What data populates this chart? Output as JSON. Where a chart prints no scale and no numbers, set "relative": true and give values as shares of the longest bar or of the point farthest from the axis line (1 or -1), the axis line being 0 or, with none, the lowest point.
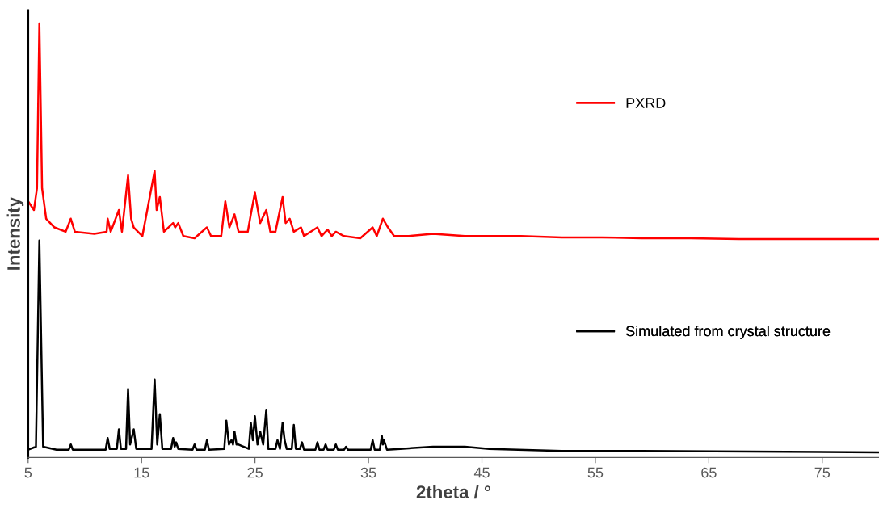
{
  "chart_data": {
    "type": "line",
    "relative": true,
    "xlabel": "2theta / °",
    "ylabel": "Intensity",
    "xlim": [
      5,
      80
    ],
    "xticks": [
      5,
      15,
      25,
      35,
      45,
      55,
      65,
      75
    ],
    "grid": false,
    "legend": "right",
    "marker": "none",
    "line_style": "solid",
    "series": [
      {
        "name": "PXRD",
        "color": "#ff0000",
        "x": [
          5,
          5.51,
          5.78,
          5.99,
          6.23,
          6.59,
          7.32,
          8.31,
          8.76,
          9.12,
          10.83,
          11.92,
          12.01,
          12.28,
          13.0,
          13.27,
          13.81,
          14.08,
          14.31,
          15.07,
          16.15,
          16.33,
          16.61,
          16.97,
          17.78,
          17.96,
          18.23,
          18.68,
          19.67,
          20.76,
          21.12,
          22.02,
          22.38,
          22.74,
          23.19,
          23.55,
          24.36,
          24.63,
          24.99,
          25.45,
          25.99,
          26.35,
          26.8,
          27.43,
          27.7,
          28.06,
          28.42,
          29.05,
          29.32,
          30.5,
          30.86,
          31.4,
          31.76,
          32.12,
          32.84,
          34.28,
          35.37,
          35.73,
          36.27,
          36.72,
          37.26,
          38.52,
          40.69,
          43.49,
          45.65,
          48.45,
          52.05,
          55.57,
          59.09,
          63.42,
          67.66,
          73.34,
          80
        ],
        "values": [
          0.59,
          0.57,
          0.62,
          1.0,
          0.62,
          0.55,
          0.53,
          0.52,
          0.55,
          0.52,
          0.515,
          0.52,
          0.55,
          0.52,
          0.57,
          0.52,
          0.65,
          0.55,
          0.53,
          0.51,
          0.66,
          0.57,
          0.6,
          0.52,
          0.54,
          0.53,
          0.54,
          0.51,
          0.505,
          0.53,
          0.51,
          0.51,
          0.59,
          0.53,
          0.56,
          0.52,
          0.52,
          0.56,
          0.61,
          0.54,
          0.57,
          0.52,
          0.52,
          0.6,
          0.54,
          0.55,
          0.52,
          0.53,
          0.51,
          0.53,
          0.51,
          0.525,
          0.51,
          0.52,
          0.51,
          0.505,
          0.53,
          0.51,
          0.55,
          0.53,
          0.51,
          0.51,
          0.515,
          0.51,
          0.51,
          0.51,
          0.507,
          0.507,
          0.505,
          0.505,
          0.503,
          0.503,
          0.503
        ]
      },
      {
        "name": "Simulated from crystal structure",
        "color": "#000000",
        "x": [
          5,
          5.69,
          5.99,
          6.32,
          7.5,
          8.58,
          8.76,
          8.94,
          11.83,
          12.01,
          12.19,
          12.82,
          13.0,
          13.18,
          13.63,
          13.81,
          13.99,
          14.31,
          14.53,
          15.88,
          16.15,
          16.38,
          16.61,
          16.83,
          17.6,
          17.78,
          17.92,
          18.05,
          18.23,
          19.49,
          19.67,
          19.85,
          20.58,
          20.76,
          20.94,
          22.29,
          22.47,
          22.7,
          22.92,
          23.06,
          23.19,
          23.37,
          23.55,
          24.45,
          24.63,
          24.81,
          24.99,
          25.22,
          25.45,
          25.72,
          25.99,
          26.17,
          26.8,
          26.98,
          27.2,
          27.43,
          27.61,
          27.79,
          28.24,
          28.42,
          28.6,
          28.96,
          29.14,
          29.32,
          30.32,
          30.5,
          30.68,
          31.04,
          31.22,
          31.4,
          31.94,
          32.12,
          32.3,
          32.84,
          33.02,
          33.2,
          35.19,
          35.37,
          35.55,
          36.0,
          36.18,
          36.27,
          36.36,
          36.63,
          37.8,
          40.69,
          43.49,
          45.65,
          52.05,
          59.09,
          80
        ],
        "values": [
          0.018,
          0.025,
          0.5,
          0.025,
          0.018,
          0.018,
          0.03,
          0.018,
          0.018,
          0.045,
          0.02,
          0.02,
          0.065,
          0.02,
          0.02,
          0.158,
          0.03,
          0.065,
          0.02,
          0.02,
          0.18,
          0.03,
          0.1,
          0.02,
          0.02,
          0.045,
          0.025,
          0.035,
          0.02,
          0.018,
          0.03,
          0.018,
          0.018,
          0.04,
          0.018,
          0.02,
          0.085,
          0.03,
          0.04,
          0.03,
          0.06,
          0.03,
          0.03,
          0.02,
          0.08,
          0.04,
          0.095,
          0.03,
          0.06,
          0.03,
          0.11,
          0.02,
          0.02,
          0.04,
          0.02,
          0.08,
          0.04,
          0.02,
          0.02,
          0.075,
          0.02,
          0.02,
          0.035,
          0.018,
          0.018,
          0.035,
          0.018,
          0.018,
          0.03,
          0.018,
          0.018,
          0.03,
          0.018,
          0.018,
          0.025,
          0.018,
          0.018,
          0.04,
          0.018,
          0.018,
          0.05,
          0.03,
          0.04,
          0.018,
          0.02,
          0.025,
          0.025,
          0.02,
          0.015,
          0.015,
          0.012
        ]
      }
    ]
  }
}
